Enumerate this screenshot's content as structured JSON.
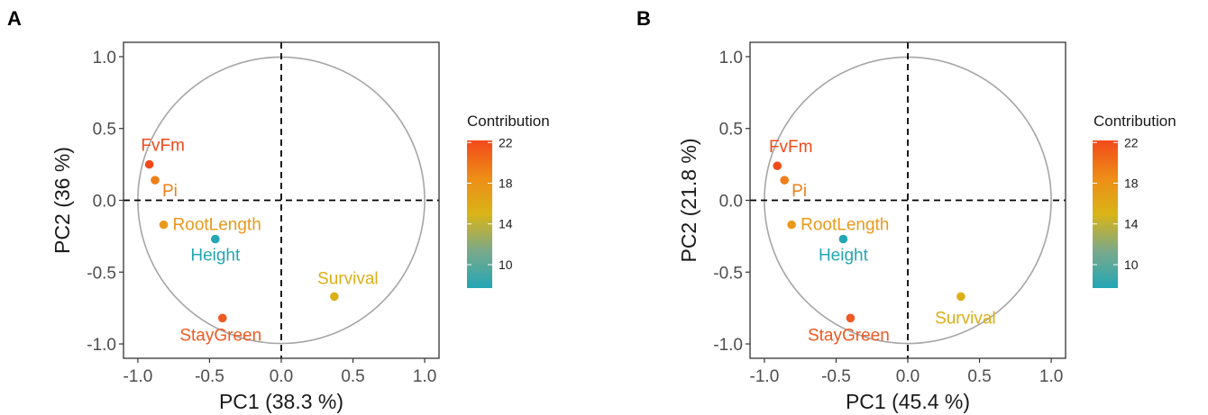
{
  "chart_data": [
    {
      "panel_label": "A",
      "type": "scatter",
      "xlabel": "PC1 (38.3 %)",
      "ylabel": "PC2 (36 %)",
      "xlim": [
        -1.1,
        1.1
      ],
      "ylim": [
        -1.1,
        1.1
      ],
      "xticks": [
        -1.0,
        -0.5,
        0.0,
        0.5,
        1.0
      ],
      "xtick_labels": [
        "-1.0",
        "-0.5",
        "0.0",
        "0.5",
        "1.0"
      ],
      "yticks": [
        -1.0,
        -0.5,
        0.0,
        0.5,
        1.0
      ],
      "ytick_labels": [
        "-1.0",
        "-0.5",
        "0.0",
        "0.5",
        "1.0"
      ],
      "grid": false,
      "unit_circle": true,
      "points": [
        {
          "label": "FvFm",
          "x": -0.92,
          "y": 0.25,
          "contribution": 21.5,
          "color": "#f04a1c"
        },
        {
          "label": "Pi",
          "x": -0.88,
          "y": 0.14,
          "contribution": 19.5,
          "color": "#ee7f1a"
        },
        {
          "label": "RootLength",
          "x": -0.82,
          "y": -0.17,
          "contribution": 17.5,
          "color": "#e99a1c"
        },
        {
          "label": "Height",
          "x": -0.46,
          "y": -0.27,
          "contribution": 8.0,
          "color": "#22a6b3"
        },
        {
          "label": "Survival",
          "x": 0.37,
          "y": -0.67,
          "contribution": 15.0,
          "color": "#ddae18"
        },
        {
          "label": "StayGreen",
          "x": -0.41,
          "y": -0.82,
          "contribution": 21.0,
          "color": "#ee5a22"
        }
      ],
      "legend": {
        "title": "Contribution",
        "ticks": [
          10,
          14,
          18,
          22
        ],
        "tick_labels": [
          "10",
          "14",
          "18",
          "22"
        ],
        "range": [
          7.7,
          22.2
        ]
      }
    },
    {
      "panel_label": "B",
      "type": "scatter",
      "xlabel": "PC1 (45.4 %)",
      "ylabel": "PC2 (21.8 %)",
      "xlim": [
        -1.1,
        1.1
      ],
      "ylim": [
        -1.1,
        1.1
      ],
      "xticks": [
        -1.0,
        -0.5,
        0.0,
        0.5,
        1.0
      ],
      "xtick_labels": [
        "-1.0",
        "-0.5",
        "0.0",
        "0.5",
        "1.0"
      ],
      "yticks": [
        -1.0,
        -0.5,
        0.0,
        0.5,
        1.0
      ],
      "ytick_labels": [
        "-1.0",
        "-0.5",
        "0.0",
        "0.5",
        "1.0"
      ],
      "grid": false,
      "unit_circle": true,
      "points": [
        {
          "label": "FvFm",
          "x": -0.91,
          "y": 0.24,
          "contribution": 21.5,
          "color": "#f04a1c"
        },
        {
          "label": "Pi",
          "x": -0.86,
          "y": 0.14,
          "contribution": 19.5,
          "color": "#ee7f1a"
        },
        {
          "label": "RootLength",
          "x": -0.81,
          "y": -0.17,
          "contribution": 17.5,
          "color": "#e99a1c"
        },
        {
          "label": "Height",
          "x": -0.45,
          "y": -0.27,
          "contribution": 8.0,
          "color": "#22a6b3"
        },
        {
          "label": "Survival",
          "x": 0.37,
          "y": -0.67,
          "contribution": 15.0,
          "color": "#ddae18"
        },
        {
          "label": "StayGreen",
          "x": -0.4,
          "y": -0.82,
          "contribution": 21.0,
          "color": "#ee5a22"
        }
      ],
      "legend": {
        "title": "Contribution",
        "ticks": [
          10,
          14,
          18,
          22
        ],
        "tick_labels": [
          "10",
          "14",
          "18",
          "22"
        ],
        "range": [
          7.7,
          22.2
        ]
      }
    }
  ],
  "gradient_colors": [
    "#22a6b3",
    "#7aa98a",
    "#d9b417",
    "#ee8c17",
    "#f24a1b"
  ]
}
